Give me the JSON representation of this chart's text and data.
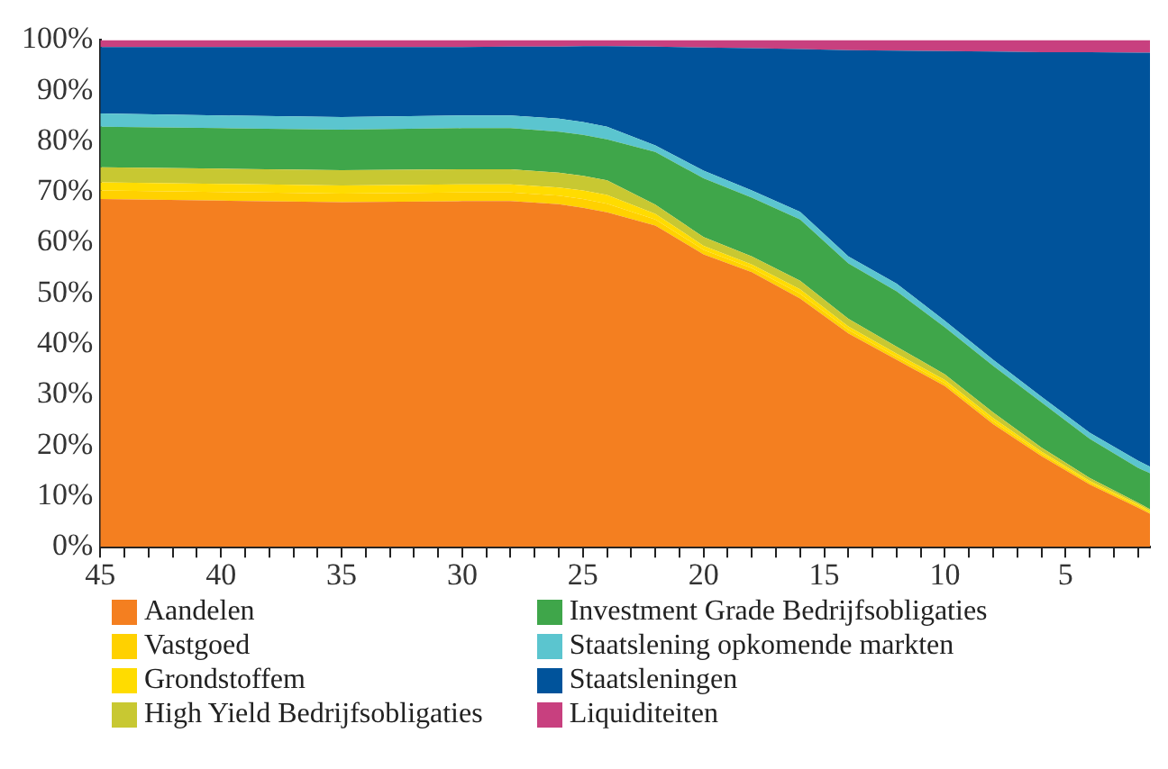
{
  "chart_data": {
    "type": "area",
    "stacked": true,
    "grid": false,
    "legend": "bottom",
    "x": [
      45,
      40,
      35,
      30,
      28,
      26,
      25,
      24,
      22,
      20,
      18,
      16,
      14,
      12,
      10,
      8,
      6,
      4,
      2,
      1.5
    ],
    "xlim": [
      45,
      1.5
    ],
    "xticks": [
      45,
      {
        "value": 44,
        "label": null
      },
      {
        "value": 43,
        "label": null
      },
      {
        "value": 42,
        "label": null
      },
      {
        "value": 41,
        "label": null
      },
      40,
      {
        "value": 39,
        "label": null
      },
      {
        "value": 38,
        "label": null
      },
      {
        "value": 37,
        "label": null
      },
      {
        "value": 36,
        "label": null
      },
      35,
      {
        "value": 34,
        "label": null
      },
      {
        "value": 33,
        "label": null
      },
      {
        "value": 32,
        "label": null
      },
      {
        "value": 31,
        "label": null
      },
      30,
      {
        "value": 29,
        "label": null
      },
      {
        "value": 28,
        "label": null
      },
      {
        "value": 27,
        "label": null
      },
      {
        "value": 26,
        "label": null
      },
      25,
      {
        "value": 24,
        "label": null
      },
      {
        "value": 23,
        "label": null
      },
      {
        "value": 22,
        "label": null
      },
      {
        "value": 21,
        "label": null
      },
      20,
      {
        "value": 19,
        "label": null
      },
      {
        "value": 18,
        "label": null
      },
      {
        "value": 17,
        "label": null
      },
      {
        "value": 16,
        "label": null
      },
      15,
      {
        "value": 14,
        "label": null
      },
      {
        "value": 13,
        "label": null
      },
      {
        "value": 12,
        "label": null
      },
      {
        "value": 11,
        "label": null
      },
      10,
      {
        "value": 9,
        "label": null
      },
      {
        "value": 8,
        "label": null
      },
      {
        "value": 7,
        "label": null
      },
      {
        "value": 6,
        "label": null
      },
      5,
      {
        "value": 4,
        "label": null
      },
      {
        "value": 3,
        "label": null
      },
      {
        "value": 2,
        "label": null
      }
    ],
    "ylim": [
      0,
      100
    ],
    "yticks": [
      {
        "value": 0,
        "label": "0%"
      },
      {
        "value": 10,
        "label": "10%"
      },
      {
        "value": 20,
        "label": "20%"
      },
      {
        "value": 30,
        "label": "30%"
      },
      {
        "value": 40,
        "label": "40%"
      },
      {
        "value": 50,
        "label": "50%"
      },
      {
        "value": 60,
        "label": "60%"
      },
      {
        "value": 70,
        "label": "70%"
      },
      {
        "value": 80,
        "label": "80%"
      },
      {
        "value": 90,
        "label": "90%"
      },
      {
        "value": 100,
        "label": "100%"
      }
    ],
    "series": [
      {
        "name": "Aandelen",
        "color": "#f47f20",
        "values": [
          68.6,
          68.3,
          68.0,
          68.2,
          68.2,
          67.6,
          66.9,
          66.0,
          63.4,
          57.7,
          54.2,
          49.0,
          42.1,
          36.9,
          31.7,
          24.2,
          17.9,
          12.3,
          7.7,
          6.5
        ]
      },
      {
        "name": "Vastgoed",
        "color": "#ffd100",
        "values": [
          1.7,
          1.7,
          1.7,
          1.7,
          1.7,
          1.7,
          1.7,
          1.7,
          1.2,
          0.9,
          0.8,
          0.9,
          0.7,
          0.6,
          0.6,
          0.6,
          0.5,
          0.4,
          0.4,
          0.3
        ]
      },
      {
        "name": "Grondstoffem",
        "color": "#ffdc00",
        "values": [
          1.6,
          1.6,
          1.6,
          1.6,
          1.6,
          1.6,
          1.7,
          1.7,
          1.1,
          0.8,
          0.7,
          0.9,
          0.7,
          0.6,
          0.6,
          0.6,
          0.4,
          0.3,
          0.3,
          0.3
        ]
      },
      {
        "name": "High Yield Bedrijfsobligaties",
        "color": "#c8c832",
        "values": [
          3.0,
          3.0,
          3.0,
          3.0,
          3.0,
          2.9,
          2.9,
          2.9,
          1.8,
          1.7,
          1.6,
          1.7,
          1.5,
          1.4,
          1.1,
          1.1,
          0.8,
          0.6,
          0.3,
          0.3
        ]
      },
      {
        "name": "Investment Grade Bedrijfsobligaties",
        "color": "#3fa64a",
        "values": [
          8.0,
          8.0,
          8.0,
          8.1,
          8.1,
          8.1,
          8.1,
          8.1,
          10.4,
          11.6,
          11.6,
          12.1,
          10.9,
          10.9,
          9.3,
          9.2,
          8.9,
          7.7,
          6.9,
          7.1
        ]
      },
      {
        "name": "Staatslening opkomende markten",
        "color": "#5bc5cf",
        "values": [
          2.6,
          2.5,
          2.5,
          2.5,
          2.5,
          2.6,
          2.5,
          2.5,
          1.3,
          1.5,
          1.4,
          1.5,
          1.4,
          1.5,
          1.3,
          1.2,
          1.1,
          1.2,
          1.4,
          1.3
        ]
      },
      {
        "name": "Staatsleningen",
        "color": "#00539b",
        "values": [
          13.1,
          13.5,
          13.8,
          13.5,
          13.6,
          14.2,
          15.0,
          15.9,
          19.5,
          24.3,
          28.1,
          32.1,
          40.7,
          46.0,
          53.2,
          60.8,
          68.0,
          75.1,
          80.5,
          81.7
        ]
      },
      {
        "name": "Liquiditeiten",
        "color": "#c8407f",
        "values": [
          1.4,
          1.4,
          1.4,
          1.4,
          1.3,
          1.3,
          1.2,
          1.2,
          1.3,
          1.5,
          1.6,
          1.8,
          2.0,
          2.1,
          2.2,
          2.3,
          2.4,
          2.4,
          2.5,
          2.5
        ]
      }
    ]
  }
}
